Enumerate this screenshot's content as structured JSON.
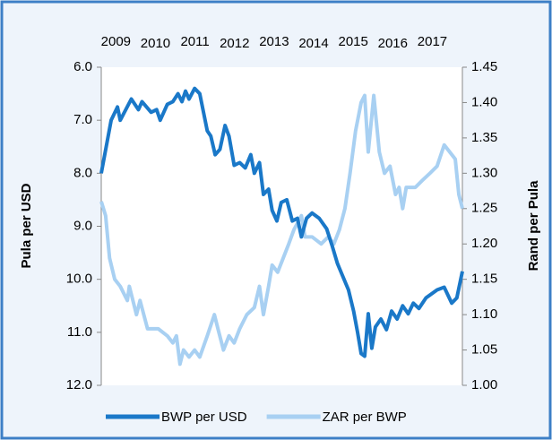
{
  "chart_data": {
    "type": "line",
    "y_label": "Pula per USD",
    "y2_label": "Rand per Pula",
    "xlim": [
      2008.63,
      2017.76
    ],
    "xticks": [
      2009,
      2010,
      2011,
      2012,
      2013,
      2014,
      2015,
      2016,
      2017
    ],
    "ylim": [
      12,
      6
    ],
    "yticks": [
      {
        "value": 6,
        "label": "6.0"
      },
      {
        "value": 7,
        "label": "7.0"
      },
      {
        "value": 8,
        "label": "8.0"
      },
      {
        "value": 9,
        "label": "9.0"
      },
      {
        "value": 10,
        "label": "10.0"
      },
      {
        "value": 11,
        "label": "11.0"
      },
      {
        "value": 12,
        "label": "12.0"
      }
    ],
    "y2lim": [
      1.0,
      1.45
    ],
    "y2ticks": [
      {
        "value": 1.0,
        "label": "1.00"
      },
      1.05,
      {
        "value": 1.1,
        "label": "1.10"
      },
      1.15,
      {
        "value": 1.2,
        "label": "1.20"
      },
      1.25,
      {
        "value": 1.3,
        "label": "1.30"
      },
      1.35,
      {
        "value": 1.4,
        "label": "1.40"
      },
      1.45
    ],
    "legend": "bottom",
    "series": [
      {
        "name": "BWP per USD",
        "color": "#1a78c8",
        "axis": "y",
        "x": [
          2008.63,
          2008.88,
          2009.04,
          2009.11,
          2009.39,
          2009.57,
          2009.66,
          2009.89,
          2010.03,
          2010.12,
          2010.3,
          2010.44,
          2010.57,
          2010.67,
          2010.76,
          2010.85,
          2010.99,
          2011.12,
          2011.31,
          2011.4,
          2011.51,
          2011.63,
          2011.76,
          2011.86,
          2011.99,
          2012.13,
          2012.27,
          2012.41,
          2012.5,
          2012.63,
          2012.73,
          2012.86,
          2012.95,
          2013.07,
          2013.18,
          2013.32,
          2013.46,
          2013.59,
          2013.69,
          2013.82,
          2013.96,
          2014.14,
          2014.33,
          2014.46,
          2014.6,
          2014.74,
          2014.88,
          2015.01,
          2015.11,
          2015.2,
          2015.29,
          2015.38,
          2015.47,
          2015.56,
          2015.7,
          2015.84,
          2015.97,
          2016.11,
          2016.25,
          2016.39,
          2016.52,
          2016.66,
          2016.84,
          2017.12,
          2017.3,
          2017.49,
          2017.62,
          2017.76
        ],
        "values": [
          8.0,
          7.0,
          6.75,
          7.0,
          6.6,
          6.8,
          6.65,
          6.85,
          6.8,
          7.0,
          6.7,
          6.65,
          6.5,
          6.65,
          6.45,
          6.6,
          6.4,
          6.5,
          7.2,
          7.3,
          7.65,
          7.55,
          7.1,
          7.3,
          7.85,
          7.8,
          7.9,
          7.65,
          8.0,
          7.8,
          8.4,
          8.3,
          8.7,
          8.9,
          8.55,
          8.5,
          8.9,
          8.85,
          9.2,
          8.85,
          8.75,
          8.85,
          9.05,
          9.35,
          9.7,
          9.95,
          10.2,
          10.6,
          11.0,
          11.4,
          11.45,
          10.65,
          11.3,
          10.9,
          10.75,
          10.95,
          10.6,
          10.75,
          10.5,
          10.65,
          10.45,
          10.55,
          10.35,
          10.2,
          10.15,
          10.45,
          10.35,
          9.85
        ]
      },
      {
        "name": "ZAR per BWP",
        "color": "#a8d0f2",
        "axis": "y2",
        "x": [
          2008.63,
          2008.74,
          2008.84,
          2008.97,
          2009.11,
          2009.29,
          2009.34,
          2009.52,
          2009.61,
          2009.8,
          2010.07,
          2010.3,
          2010.44,
          2010.53,
          2010.62,
          2010.71,
          2010.85,
          2010.99,
          2011.12,
          2011.31,
          2011.49,
          2011.58,
          2011.72,
          2011.86,
          2011.99,
          2012.13,
          2012.31,
          2012.5,
          2012.63,
          2012.73,
          2012.86,
          2012.95,
          2013.09,
          2013.23,
          2013.37,
          2013.5,
          2013.69,
          2013.78,
          2013.96,
          2014.19,
          2014.37,
          2014.51,
          2014.65,
          2014.79,
          2014.92,
          2015.06,
          2015.2,
          2015.29,
          2015.38,
          2015.52,
          2015.66,
          2015.79,
          2015.93,
          2016.07,
          2016.16,
          2016.25,
          2016.34,
          2016.57,
          2016.75,
          2016.94,
          2017.12,
          2017.3,
          2017.44,
          2017.58,
          2017.67,
          2017.76
        ],
        "values": [
          1.26,
          1.24,
          1.18,
          1.15,
          1.14,
          1.12,
          1.14,
          1.1,
          1.12,
          1.08,
          1.08,
          1.07,
          1.06,
          1.07,
          1.03,
          1.05,
          1.04,
          1.05,
          1.04,
          1.07,
          1.1,
          1.08,
          1.05,
          1.07,
          1.06,
          1.08,
          1.1,
          1.11,
          1.14,
          1.1,
          1.14,
          1.17,
          1.16,
          1.18,
          1.2,
          1.22,
          1.24,
          1.21,
          1.21,
          1.2,
          1.21,
          1.2,
          1.22,
          1.25,
          1.3,
          1.36,
          1.4,
          1.41,
          1.33,
          1.41,
          1.33,
          1.3,
          1.31,
          1.27,
          1.28,
          1.25,
          1.28,
          1.28,
          1.29,
          1.3,
          1.31,
          1.34,
          1.33,
          1.32,
          1.27,
          1.25
        ]
      }
    ]
  }
}
